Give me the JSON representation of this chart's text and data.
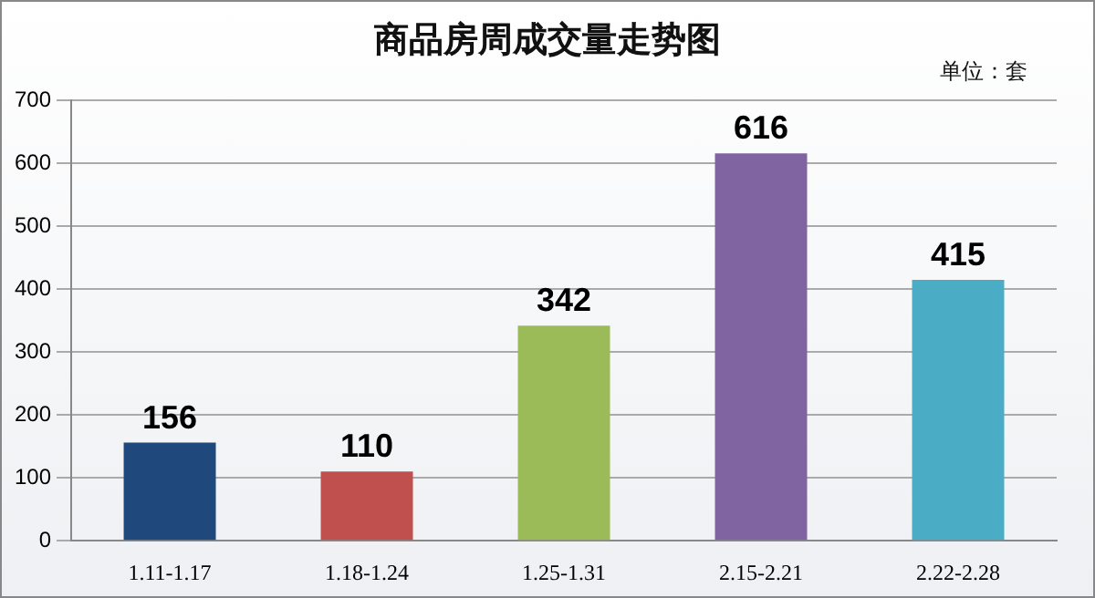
{
  "chart_data": {
    "type": "bar",
    "title": "商品房周成交量走势图",
    "annotations": [
      "单位：套"
    ],
    "categories": [
      "1.11-1.17",
      "1.18-1.24",
      "1.25-1.31",
      "2.15-2.21",
      "2.22-2.28"
    ],
    "values": [
      156,
      110,
      342,
      616,
      415
    ],
    "colors": [
      "#1f497d",
      "#c0504d",
      "#9bbb59",
      "#8064a2",
      "#4bacc6"
    ],
    "ylim": [
      0,
      700
    ],
    "yticks": [
      0,
      100,
      200,
      300,
      400,
      500,
      600,
      700
    ],
    "grid": "y",
    "data_labels": true
  }
}
